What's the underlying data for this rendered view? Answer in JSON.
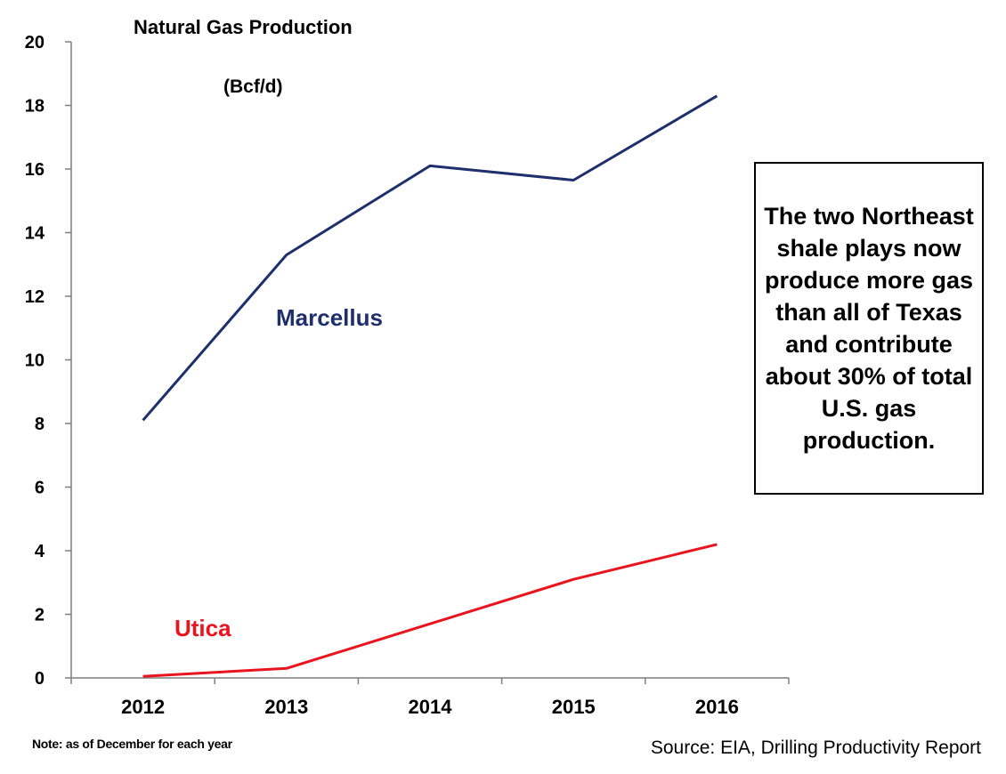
{
  "chart_data": {
    "type": "line",
    "title": "Natural Gas Production",
    "subtitle": "(Bcf/d)",
    "categories": [
      "2012",
      "2013",
      "2014",
      "2015",
      "2016"
    ],
    "series": [
      {
        "name": "Marcellus",
        "color": "#1f2f6b",
        "values": [
          8.1,
          13.3,
          16.1,
          15.65,
          18.3
        ]
      },
      {
        "name": "Utica",
        "color": "#e8141e",
        "values": [
          0.05,
          0.3,
          1.7,
          3.1,
          4.2
        ]
      }
    ],
    "ylim": [
      0,
      20
    ],
    "yticks": [
      "0",
      "2",
      "4",
      "6",
      "8",
      "10",
      "12",
      "14",
      "16",
      "18",
      "20"
    ],
    "xlabel": "",
    "ylabel": "",
    "grid": false
  },
  "callout": {
    "text": "The two Northeast shale plays now produce more gas than all of Texas and contribute about 30% of total U.S. gas production."
  },
  "note": "Note: as of December for each year",
  "source": "Source: EIA, Drilling Productivity Report"
}
